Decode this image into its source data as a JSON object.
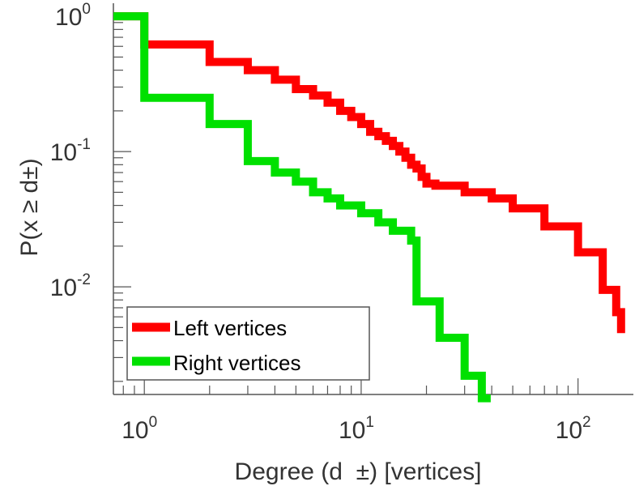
{
  "chart_data": {
    "type": "line",
    "subtype": "ccdf-step",
    "xscale": "log",
    "yscale": "log",
    "xlim": [
      0.72,
      180
    ],
    "ylim": [
      0.0016,
      1.25
    ],
    "grid": false,
    "legend_position": "bottom-left",
    "xlabel": "Degree (d  ±) [vertices]",
    "ylabel": "P(x ≥ d±)",
    "x_ticks": [
      {
        "value": 1,
        "base": "10",
        "exp": "0"
      },
      {
        "value": 10,
        "base": "10",
        "exp": "1"
      },
      {
        "value": 100,
        "base": "10",
        "exp": "2"
      }
    ],
    "y_ticks": [
      {
        "value": 1,
        "base": "10",
        "exp": "0"
      },
      {
        "value": 0.1,
        "base": "10",
        "exp": "-1"
      },
      {
        "value": 0.01,
        "base": "10",
        "exp": "-2"
      }
    ],
    "series": [
      {
        "name": "Left vertices",
        "color": "#ff0000",
        "x": [
          1,
          2,
          3,
          4,
          5,
          6,
          7,
          8,
          9,
          10,
          11,
          12,
          13,
          14,
          15,
          16,
          17,
          18,
          19,
          20,
          22,
          30,
          40,
          50,
          70,
          100,
          130,
          150
        ],
        "y": [
          0.62,
          0.46,
          0.4,
          0.34,
          0.29,
          0.26,
          0.23,
          0.2,
          0.18,
          0.16,
          0.14,
          0.13,
          0.12,
          0.11,
          0.1,
          0.09,
          0.08,
          0.075,
          0.065,
          0.058,
          0.056,
          0.05,
          0.045,
          0.038,
          0.028,
          0.018,
          0.0095,
          0.0065
        ]
      },
      {
        "name": "Right vertices",
        "color": "#00e000",
        "x": [
          1,
          2,
          3,
          4,
          5,
          6,
          7,
          8,
          10,
          12,
          14,
          17,
          18,
          23,
          30,
          36
        ],
        "y": [
          0.25,
          0.16,
          0.085,
          0.07,
          0.06,
          0.05,
          0.045,
          0.04,
          0.035,
          0.03,
          0.026,
          0.022,
          0.0078,
          0.0042,
          0.0022,
          0.0015
        ]
      }
    ]
  }
}
